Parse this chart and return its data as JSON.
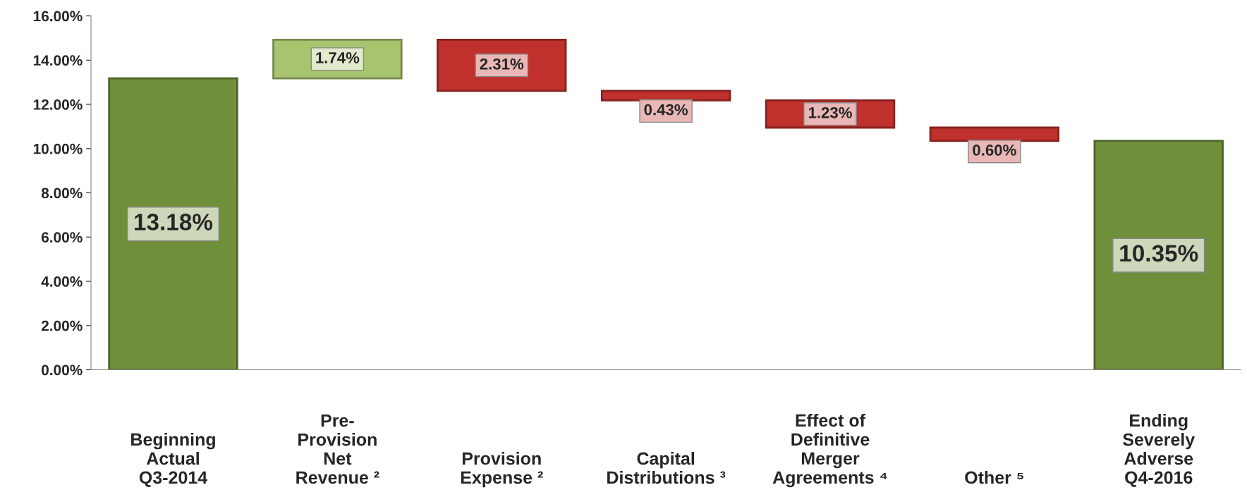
{
  "chart_data": {
    "type": "bar",
    "categories": [
      "Beginning\nActual\nQ3-2014",
      "Pre-\nProvision\nNet\nRevenue ²",
      "Provision\nExpense ²",
      "Capital\nDistributions ³",
      "Effect of\nDefinitive\nMerger\nAgreements ⁴",
      "Other ⁵",
      "Ending\nSeverely\nAdverse\nQ4-2016"
    ],
    "values": [
      13.18,
      1.74,
      2.31,
      0.43,
      1.23,
      0.6,
      10.35
    ],
    "base": [
      0,
      13.18,
      12.61,
      12.18,
      10.95,
      10.35,
      0
    ],
    "colors": [
      "#6f8f3a",
      "#a9c46e",
      "#c0302c",
      "#c0302c",
      "#c0302c",
      "#c0302c",
      "#6f8f3a"
    ],
    "value_labels": [
      "13.18%",
      "1.74%",
      "2.31%",
      "0.43%",
      "1.23%",
      "0.60%",
      "10.35%"
    ],
    "ylim": [
      0,
      16
    ],
    "yticks": [
      {
        "value": 0,
        "label": "0.00%"
      },
      {
        "value": 2,
        "label": "2.00%"
      },
      {
        "value": 4,
        "label": "4.00%"
      },
      {
        "value": 6,
        "label": "6.00%"
      },
      {
        "value": 8,
        "label": "8.00%"
      },
      {
        "value": 10,
        "label": "10.00%"
      },
      {
        "value": 12,
        "label": "12.00%"
      },
      {
        "value": 14,
        "label": "14.00%"
      },
      {
        "value": 16,
        "label": "16.00%"
      }
    ],
    "grid": false,
    "legend": false
  }
}
